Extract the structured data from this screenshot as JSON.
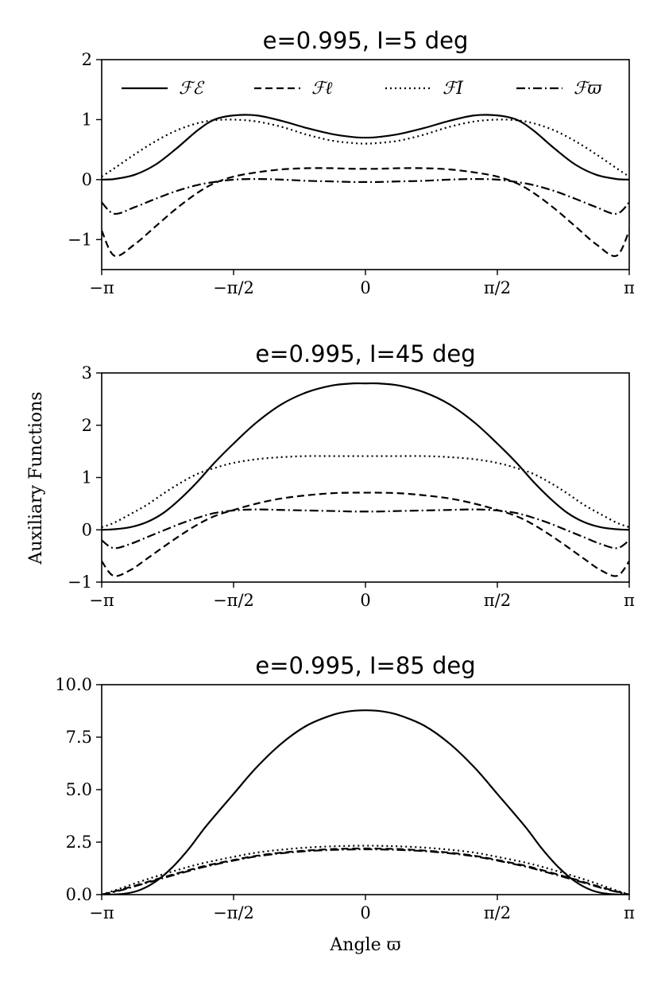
{
  "figure": {
    "y_axis_label": "Auxiliary Functions",
    "x_axis_label": "Angle ϖ"
  },
  "legend": [
    {
      "label": "ℱℰ",
      "style": "solid"
    },
    {
      "label": "ℱℓ",
      "style": "dashed"
    },
    {
      "label": "ℱI",
      "style": "dotted"
    },
    {
      "label": "ℱϖ",
      "style": "dashdot"
    }
  ],
  "chart_data": [
    {
      "type": "line",
      "title": "e = 0.995, I = 5 deg",
      "xlabel": "",
      "ylabel": "",
      "xlim": [
        -3.14159,
        3.14159
      ],
      "ylim": [
        -1.5,
        2
      ],
      "xticks": [
        -3.14159,
        -1.5708,
        0,
        1.5708,
        3.14159
      ],
      "xtick_labels": [
        "−π",
        "−π/2",
        "0",
        "π/2",
        "π"
      ],
      "yticks": [
        -1,
        0,
        1,
        2
      ],
      "ytick_labels": [
        "−1",
        "0",
        "1",
        "2"
      ],
      "x": [
        -3.14159,
        -2.99,
        -2.75,
        -2.5,
        -2.25,
        -2.0,
        -1.8,
        -1.57,
        -1.3,
        -1.0,
        -0.7,
        -0.4,
        -0.15,
        0,
        0.15,
        0.4,
        0.7,
        1.0,
        1.3,
        1.57,
        1.8,
        2.0,
        2.25,
        2.5,
        2.75,
        2.99,
        3.14159
      ],
      "series": [
        {
          "name": "ℱℰ",
          "style": "solid",
          "values": [
            0.0,
            0.01,
            0.08,
            0.25,
            0.52,
            0.82,
            1.0,
            1.07,
            1.07,
            0.98,
            0.86,
            0.76,
            0.71,
            0.7,
            0.71,
            0.76,
            0.86,
            0.98,
            1.07,
            1.07,
            1.0,
            0.82,
            0.52,
            0.25,
            0.08,
            0.01,
            0.0
          ]
        },
        {
          "name": "ℱℓ",
          "style": "dashed",
          "values": [
            -0.85,
            -1.27,
            -1.08,
            -0.78,
            -0.48,
            -0.22,
            -0.06,
            0.05,
            0.12,
            0.17,
            0.19,
            0.19,
            0.18,
            0.18,
            0.18,
            0.19,
            0.19,
            0.17,
            0.12,
            0.05,
            -0.06,
            -0.22,
            -0.48,
            -0.78,
            -1.08,
            -1.27,
            -0.85
          ]
        },
        {
          "name": "ℱI",
          "style": "dotted",
          "values": [
            0.05,
            0.19,
            0.42,
            0.64,
            0.82,
            0.94,
            0.99,
            1.0,
            0.97,
            0.88,
            0.75,
            0.65,
            0.61,
            0.6,
            0.61,
            0.65,
            0.75,
            0.88,
            0.97,
            1.0,
            0.99,
            0.94,
            0.82,
            0.64,
            0.42,
            0.19,
            0.05
          ]
        },
        {
          "name": "ℱϖ",
          "style": "dashdot",
          "values": [
            -0.38,
            -0.57,
            -0.46,
            -0.32,
            -0.19,
            -0.09,
            -0.04,
            0.0,
            0.01,
            0.0,
            -0.02,
            -0.03,
            -0.04,
            -0.04,
            -0.04,
            -0.03,
            -0.02,
            0.0,
            0.01,
            0.0,
            -0.04,
            -0.09,
            -0.19,
            -0.32,
            -0.46,
            -0.57,
            -0.38
          ]
        }
      ]
    },
    {
      "type": "line",
      "title": "e = 0.995, I = 45 deg",
      "xlabel": "",
      "ylabel": "Auxiliary Functions",
      "xlim": [
        -3.14159,
        3.14159
      ],
      "ylim": [
        -1,
        3
      ],
      "xticks": [
        -3.14159,
        -1.5708,
        0,
        1.5708,
        3.14159
      ],
      "xtick_labels": [
        "−π",
        "−π/2",
        "0",
        "π/2",
        "π"
      ],
      "yticks": [
        -1,
        0,
        1,
        2,
        3
      ],
      "ytick_labels": [
        "−1",
        "0",
        "1",
        "2",
        "3"
      ],
      "x": [
        -3.14159,
        -3.0,
        -2.8,
        -2.6,
        -2.4,
        -2.2,
        -2.0,
        -1.8,
        -1.57,
        -1.3,
        -1.0,
        -0.7,
        -0.4,
        -0.15,
        0,
        0.15,
        0.4,
        0.7,
        1.0,
        1.3,
        1.57,
        1.8,
        2.0,
        2.2,
        2.4,
        2.6,
        2.8,
        3.0,
        3.14159
      ],
      "series": [
        {
          "name": "ℱℰ",
          "style": "solid",
          "values": [
            0.0,
            0.01,
            0.05,
            0.15,
            0.33,
            0.6,
            0.92,
            1.28,
            1.65,
            2.05,
            2.4,
            2.63,
            2.76,
            2.8,
            2.8,
            2.8,
            2.76,
            2.63,
            2.4,
            2.05,
            1.65,
            1.28,
            0.92,
            0.6,
            0.33,
            0.15,
            0.05,
            0.01,
            0.0
          ]
        },
        {
          "name": "ℱℓ",
          "style": "dashed",
          "values": [
            -0.6,
            -0.88,
            -0.77,
            -0.55,
            -0.32,
            -0.1,
            0.1,
            0.26,
            0.38,
            0.5,
            0.6,
            0.66,
            0.7,
            0.71,
            0.71,
            0.71,
            0.7,
            0.66,
            0.6,
            0.5,
            0.38,
            0.26,
            0.1,
            -0.1,
            -0.32,
            -0.55,
            -0.77,
            -0.88,
            -0.6
          ]
        },
        {
          "name": "ℱI",
          "style": "dotted",
          "values": [
            0.05,
            0.13,
            0.3,
            0.48,
            0.7,
            0.9,
            1.07,
            1.18,
            1.28,
            1.35,
            1.39,
            1.41,
            1.41,
            1.41,
            1.41,
            1.41,
            1.41,
            1.41,
            1.39,
            1.35,
            1.28,
            1.18,
            1.07,
            0.9,
            0.7,
            0.48,
            0.3,
            0.13,
            0.05
          ]
        },
        {
          "name": "ℱϖ",
          "style": "dashdot",
          "values": [
            -0.2,
            -0.35,
            -0.27,
            -0.14,
            -0.01,
            0.12,
            0.23,
            0.32,
            0.37,
            0.39,
            0.38,
            0.37,
            0.36,
            0.35,
            0.35,
            0.35,
            0.36,
            0.37,
            0.38,
            0.39,
            0.37,
            0.32,
            0.23,
            0.12,
            -0.01,
            -0.14,
            -0.27,
            -0.35,
            -0.2
          ]
        }
      ]
    },
    {
      "type": "line",
      "title": "e = 0.995, I = 85 deg",
      "xlabel": "Angle ϖ",
      "ylabel": "",
      "xlim": [
        -3.14159,
        3.14159
      ],
      "ylim": [
        0,
        10
      ],
      "xticks": [
        -3.14159,
        -1.5708,
        0,
        1.5708,
        3.14159
      ],
      "xtick_labels": [
        "−π",
        "−π/2",
        "0",
        "π/2",
        "π"
      ],
      "yticks": [
        0,
        2.5,
        5,
        7.5,
        10
      ],
      "ytick_labels": [
        "0.0",
        "2.5",
        "5.0",
        "7.5",
        "10.0"
      ],
      "x": [
        -3.14159,
        -2.9,
        -2.7,
        -2.5,
        -2.3,
        -2.1,
        -1.9,
        -1.57,
        -1.3,
        -1.0,
        -0.7,
        -0.4,
        -0.2,
        0,
        0.2,
        0.4,
        0.7,
        1.0,
        1.3,
        1.57,
        1.9,
        2.1,
        2.3,
        2.5,
        2.7,
        2.9,
        3.14159
      ],
      "series": [
        {
          "name": "ℱℰ",
          "style": "solid",
          "values": [
            0.0,
            0.03,
            0.2,
            0.62,
            1.3,
            2.2,
            3.25,
            4.8,
            6.05,
            7.2,
            8.05,
            8.55,
            8.73,
            8.78,
            8.73,
            8.55,
            8.05,
            7.2,
            6.05,
            4.8,
            3.25,
            2.2,
            1.3,
            0.62,
            0.2,
            0.03,
            0.0
          ]
        },
        {
          "name": "ℱℓ",
          "style": "dashed",
          "values": [
            0.0,
            0.25,
            0.48,
            0.72,
            0.95,
            1.17,
            1.38,
            1.65,
            1.85,
            2.0,
            2.1,
            2.17,
            2.19,
            2.2,
            2.19,
            2.17,
            2.1,
            2.0,
            1.85,
            1.65,
            1.38,
            1.17,
            0.95,
            0.72,
            0.48,
            0.25,
            0.0
          ]
        },
        {
          "name": "ℱI",
          "style": "dotted",
          "values": [
            0.0,
            0.32,
            0.6,
            0.86,
            1.1,
            1.33,
            1.53,
            1.8,
            2.0,
            2.14,
            2.24,
            2.3,
            2.32,
            2.33,
            2.32,
            2.3,
            2.24,
            2.14,
            2.0,
            1.8,
            1.53,
            1.33,
            1.1,
            0.86,
            0.6,
            0.32,
            0.0
          ]
        },
        {
          "name": "ℱϖ",
          "style": "dashdot",
          "values": [
            0.0,
            0.22,
            0.45,
            0.68,
            0.91,
            1.13,
            1.34,
            1.62,
            1.82,
            1.97,
            2.07,
            2.13,
            2.15,
            2.16,
            2.15,
            2.13,
            2.07,
            1.97,
            1.82,
            1.62,
            1.34,
            1.13,
            0.91,
            0.68,
            0.45,
            0.22,
            0.0
          ]
        }
      ]
    }
  ]
}
